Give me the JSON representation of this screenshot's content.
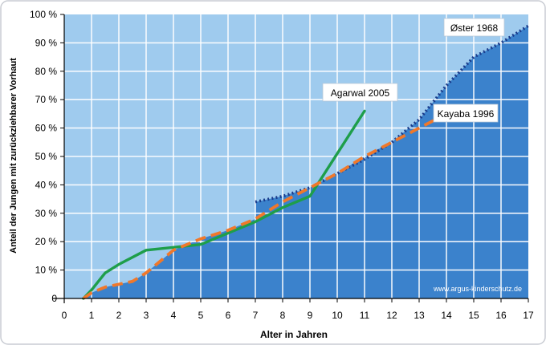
{
  "chart_data": {
    "type": "line",
    "ylabel": "Anteil der Jungen mit zurückziehbarer Vorhaut",
    "xlabel": "Alter in Jahren",
    "xlim": [
      0,
      17
    ],
    "ylim": [
      0,
      100
    ],
    "x_ticks": [
      "0",
      "1",
      "2",
      "3",
      "4",
      "5",
      "6",
      "7",
      "8",
      "9",
      "10",
      "11",
      "12",
      "13",
      "14",
      "15",
      "16",
      "17"
    ],
    "y_ticks": [
      "0",
      "10 %",
      "20 %",
      "30 %",
      "40 %",
      "50 %",
      "60 %",
      "70 %",
      "80 %",
      "90 %",
      "100 %"
    ],
    "grid": true,
    "watermark": "www.argus-kinderschutz.de",
    "colors": {
      "plot_background": "#9fcbee",
      "area_fill": "#3b82cc",
      "agarwal": "#1e9e4a",
      "kayaba": "#f0782a",
      "oster": "#1a3c8c",
      "frame": "#c9ccd3"
    },
    "series": [
      {
        "name": "Øster 1968",
        "style": "dotted",
        "area": true,
        "x": [
          7,
          8,
          9,
          10,
          11,
          12,
          13,
          14,
          15,
          16,
          17
        ],
        "y": [
          34,
          36,
          39,
          44,
          49,
          55,
          63,
          75,
          85,
          90,
          96
        ]
      },
      {
        "name": "Agarwal 2005",
        "style": "solid",
        "x": [
          0.7,
          1,
          1.5,
          2,
          3,
          4,
          5,
          6,
          7,
          8,
          9,
          10,
          11
        ],
        "y": [
          0,
          3,
          9,
          12,
          17,
          18,
          19,
          23,
          27,
          32,
          36,
          51,
          66
        ]
      },
      {
        "name": "Kayaba 1996",
        "style": "dashed",
        "x": [
          0.7,
          1,
          1.5,
          2,
          2.5,
          3,
          4,
          5,
          6,
          7,
          8,
          9,
          10,
          11,
          12,
          13,
          13.6
        ],
        "y": [
          0,
          2,
          4,
          5,
          6,
          9,
          17,
          21,
          24,
          28,
          34,
          39,
          44,
          50,
          55,
          60,
          63
        ]
      }
    ]
  }
}
